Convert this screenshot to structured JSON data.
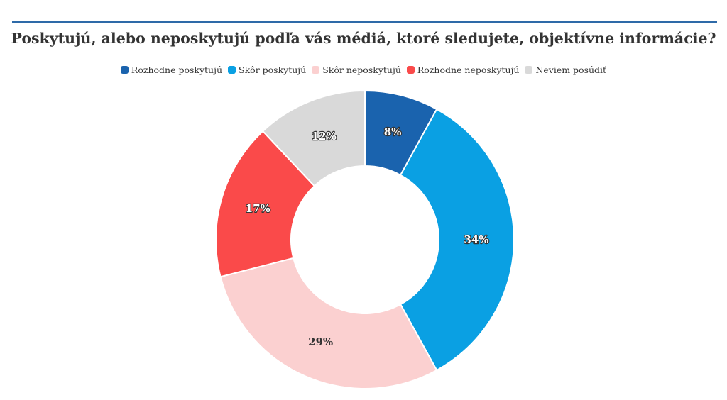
{
  "title": "Poskytujú, alebo neposkytujú podľa vás médiá, ktoré sledujete, objektívne informácie?",
  "legend": [
    {
      "label": "Rozhodne poskytujú",
      "color": "#1a63ae"
    },
    {
      "label": "Skôr poskytujú",
      "color": "#0aa0e3"
    },
    {
      "label": "Skôr neposkytujú",
      "color": "#fbd0d0"
    },
    {
      "label": "Rozhodne neposkytujú",
      "color": "#fa4a4a"
    },
    {
      "label": "Neviem posúdiť",
      "color": "#d9d9d9"
    }
  ],
  "chart_data": {
    "type": "pie",
    "donut": true,
    "title": "Poskytujú, alebo neposkytujú podľa vás médiá, ktoré sledujete, objektívne informácie?",
    "legend_position": "top",
    "slices": [
      {
        "label": "Rozhodne poskytujú",
        "value": 8,
        "display": "8%",
        "color": "#1a63ae"
      },
      {
        "label": "Skôr poskytujú",
        "value": 34,
        "display": "34%",
        "color": "#0aa0e3"
      },
      {
        "label": "Skôr neposkytujú",
        "value": 29,
        "display": "29%",
        "color": "#fbd0d0"
      },
      {
        "label": "Rozhodne neposkytujú",
        "value": 17,
        "display": "17%",
        "color": "#fa4a4a"
      },
      {
        "label": "Neviem posúdiť",
        "value": 12,
        "display": "12%",
        "color": "#d9d9d9"
      }
    ]
  }
}
